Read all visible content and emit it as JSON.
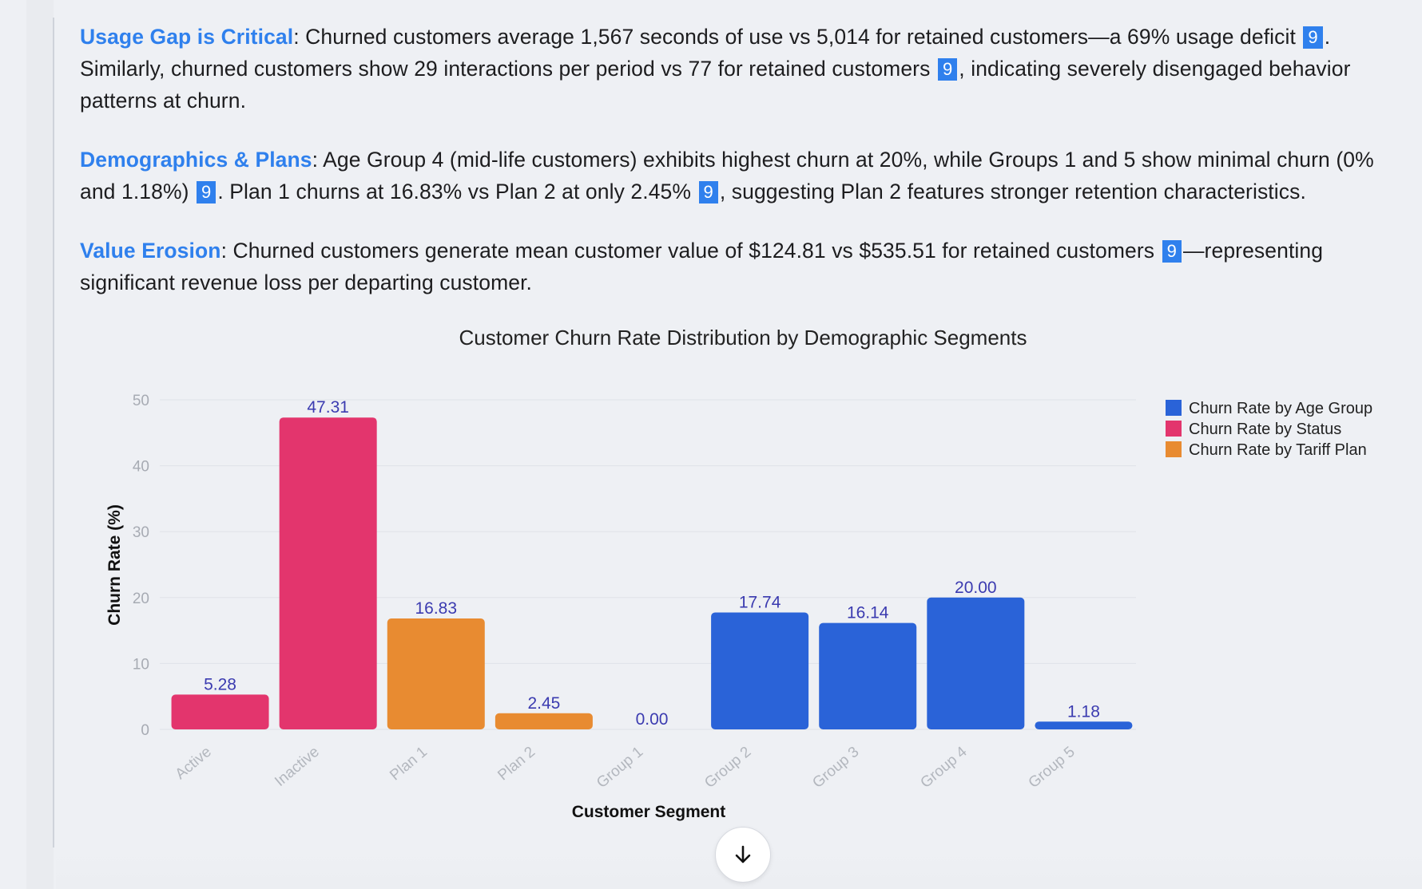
{
  "paragraphs": [
    {
      "heading": "Usage Gap is Critical",
      "parts": [
        ": Churned customers average 1,567 seconds of use vs 5,014 for retained customers—a 69% usage deficit ",
        ". Similarly, churned customers show 29 interactions per period vs 77 for retained customers ",
        ", indicating severely disengaged behavior patterns at churn."
      ],
      "citations": [
        "9",
        "9"
      ]
    },
    {
      "heading": "Demographics & Plans",
      "parts": [
        ": Age Group 4 (mid-life customers) exhibits highest churn at 20%, while Groups 1 and 5 show minimal churn (0% and 1.18%) ",
        ". Plan 1 churns at 16.83% vs Plan 2 at only 2.45% ",
        ", suggesting Plan 2 features stronger retention characteristics."
      ],
      "citations": [
        "9",
        "9"
      ]
    },
    {
      "heading": "Value Erosion",
      "parts": [
        ": Churned customers generate mean customer value of $124.81 vs $535.51 for retained customers ",
        "—representing significant revenue loss per departing customer."
      ],
      "citations": [
        "9"
      ]
    }
  ],
  "colors": {
    "accent": "#2f80ed",
    "age_group": "#2a63d8",
    "status": "#e3356d",
    "tariff_plan": "#e88b31",
    "value_label": "#3b3bb0"
  },
  "scroll_button": {
    "icon": "arrow-down-icon"
  },
  "chart_data": {
    "type": "bar",
    "title": "Customer Churn Rate Distribution by Demographic Segments",
    "xlabel": "Customer Segment",
    "ylabel": "Churn Rate (%)",
    "ylim": [
      0,
      50
    ],
    "yticks": [
      0,
      10,
      20,
      30,
      40,
      50
    ],
    "grid": true,
    "legend_position": "top-right",
    "categories": [
      "Active",
      "Inactive",
      "Plan 1",
      "Plan 2",
      "Group 1",
      "Group 2",
      "Group 3",
      "Group 4",
      "Group 5"
    ],
    "series": [
      {
        "name": "Churn Rate by Age Group",
        "color": "#2a63d8",
        "values": [
          null,
          null,
          null,
          null,
          0.0,
          17.74,
          16.14,
          20.0,
          1.18
        ]
      },
      {
        "name": "Churn Rate by Status",
        "color": "#e3356d",
        "values": [
          5.28,
          47.31,
          null,
          null,
          null,
          null,
          null,
          null,
          null
        ]
      },
      {
        "name": "Churn Rate by Tariff Plan",
        "color": "#e88b31",
        "values": [
          null,
          null,
          16.83,
          2.45,
          null,
          null,
          null,
          null,
          null
        ]
      }
    ],
    "data_labels": [
      "5.28",
      "47.31",
      "16.83",
      "2.45",
      "0.00",
      "17.74",
      "16.14",
      "20.00",
      "1.18"
    ]
  }
}
